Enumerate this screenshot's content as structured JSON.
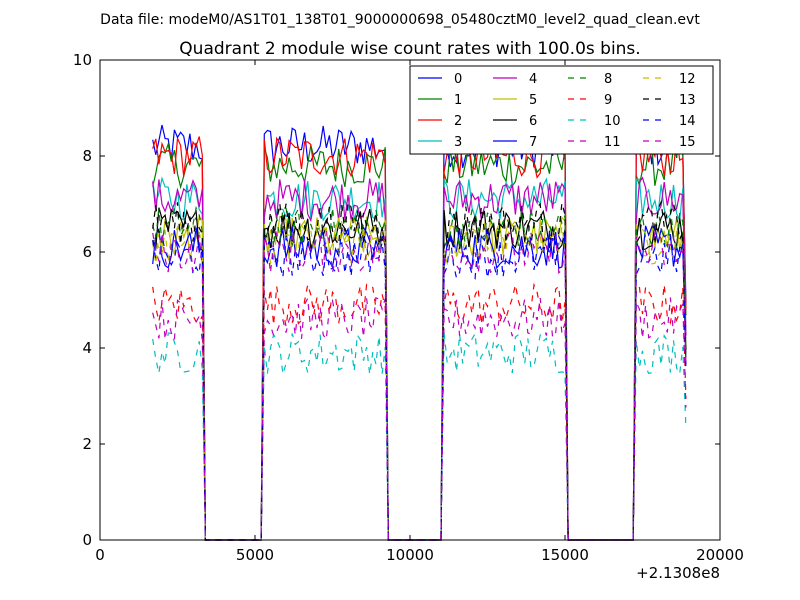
{
  "figure": {
    "suptitle": "Data file: modeM0/AS1T01_138T01_9000000698_05480cztM0_level2_quad_clean.evt",
    "offset_label": "+2.1308e8"
  },
  "chart_data": {
    "type": "line",
    "title": "Quadrant 2 module wise count rates with 100.0s bins.",
    "xlabel": "",
    "ylabel": "",
    "xlim": [
      0,
      20000
    ],
    "ylim": [
      0,
      10
    ],
    "x_offset": 213080000,
    "xticks": [
      0,
      5000,
      10000,
      15000,
      20000
    ],
    "xtick_labels": [
      "0",
      "5000",
      "10000",
      "15000",
      "20000"
    ],
    "yticks": [
      0,
      2,
      4,
      6,
      8,
      10
    ],
    "ytick_labels": [
      "0",
      "2",
      "4",
      "6",
      "8",
      "10"
    ],
    "grid": false,
    "legend_location": "upper-right",
    "legend_columns": 4,
    "active_intervals": [
      [
        1700,
        3300
      ],
      [
        5300,
        9200
      ],
      [
        11100,
        15000
      ],
      [
        17300,
        18900
      ]
    ],
    "series": [
      {
        "name": "0",
        "color": "#0000ff",
        "dash": "solid",
        "level": 8.2
      },
      {
        "name": "1",
        "color": "#008000",
        "dash": "solid",
        "level": 7.8
      },
      {
        "name": "2",
        "color": "#ff0000",
        "dash": "solid",
        "level": 8.0
      },
      {
        "name": "3",
        "color": "#00bfbf",
        "dash": "solid",
        "level": 7.1
      },
      {
        "name": "4",
        "color": "#bf00bf",
        "dash": "solid",
        "level": 7.1
      },
      {
        "name": "5",
        "color": "#bfbf00",
        "dash": "solid",
        "level": 6.3
      },
      {
        "name": "6",
        "color": "#000000",
        "dash": "solid",
        "level": 6.5
      },
      {
        "name": "7",
        "color": "#0000ff",
        "dash": "solid",
        "level": 6.1
      },
      {
        "name": "8",
        "color": "#008000",
        "dash": "dashed",
        "level": 6.5
      },
      {
        "name": "9",
        "color": "#ff0000",
        "dash": "dashed",
        "level": 4.9
      },
      {
        "name": "10",
        "color": "#00bfbf",
        "dash": "dashed",
        "level": 3.9
      },
      {
        "name": "11",
        "color": "#bf00bf",
        "dash": "dashed",
        "level": 4.6
      },
      {
        "name": "12",
        "color": "#bfbf00",
        "dash": "dashed",
        "level": 6.2
      },
      {
        "name": "13",
        "color": "#000000",
        "dash": "dashed",
        "level": 6.6
      },
      {
        "name": "14",
        "color": "#0000ff",
        "dash": "dashed",
        "level": 5.9
      },
      {
        "name": "15",
        "color": "#bf00bf",
        "dash": "dashed",
        "level": 6.0
      }
    ]
  }
}
